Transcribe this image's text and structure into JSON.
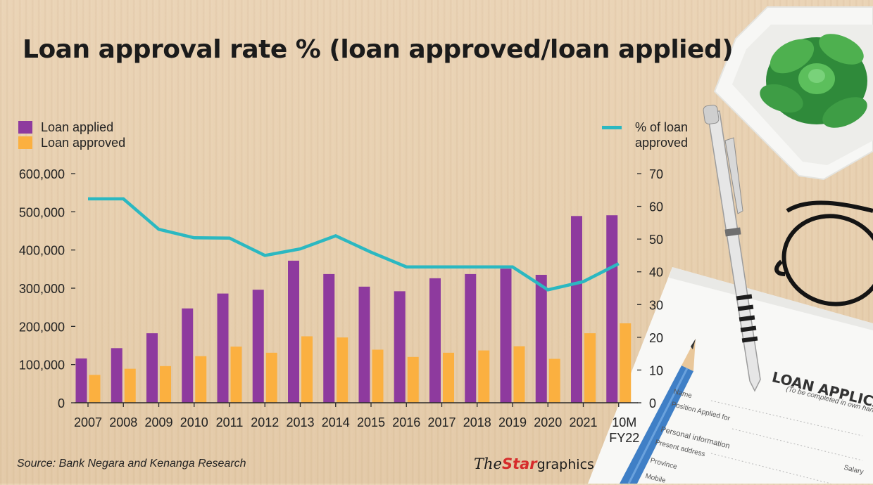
{
  "title": "Loan approval rate % (loan approved/loan applied)",
  "legend": {
    "applied": "Loan applied",
    "approved": "Loan approved",
    "rate_line1": "% of loan",
    "rate_line2": "approved"
  },
  "source": "Source: Bank Negara and Kenanga Research",
  "brand": {
    "the": "The",
    "star": "Star",
    "graphics": "graphics"
  },
  "colors": {
    "applied": "#8e3a9e",
    "approved": "#fbb040",
    "rate": "#2bb8c1",
    "axis": "#2a2a2a"
  },
  "background_photo": {
    "form_title": "LOAN APPLICAT",
    "form_subtitle": "(To be completed in own handwri",
    "form_fields": [
      "Name",
      "Position Applied for",
      "Personal information",
      "Present address",
      "Province",
      "Mobile",
      "Salary"
    ],
    "icons": [
      "plant-icon",
      "pen-icon",
      "eyeglasses-icon",
      "pencil-icon",
      "paper-form-icon"
    ]
  },
  "chart_data": {
    "type": "bar",
    "title": "Loan approval rate % (loan approved/loan applied)",
    "categories": [
      "2007",
      "2008",
      "2009",
      "2010",
      "2011",
      "2012",
      "2013",
      "2014",
      "2015",
      "2016",
      "2017",
      "2018",
      "2019",
      "2020",
      "2021",
      "10M FY22"
    ],
    "category_lines": [
      [
        "2007"
      ],
      [
        "2008"
      ],
      [
        "2009"
      ],
      [
        "2010"
      ],
      [
        "2011"
      ],
      [
        "2012"
      ],
      [
        "2013"
      ],
      [
        "2014"
      ],
      [
        "2015"
      ],
      [
        "2016"
      ],
      [
        "2017"
      ],
      [
        "2018"
      ],
      [
        "2019"
      ],
      [
        "2020"
      ],
      [
        "2021"
      ],
      [
        "10M",
        "FY22"
      ]
    ],
    "series": [
      {
        "name": "Loan applied",
        "type": "bar",
        "axis": "left",
        "values": [
          116000,
          143000,
          182000,
          247000,
          286000,
          296000,
          372000,
          337000,
          304000,
          292000,
          326000,
          337000,
          351000,
          335000,
          489000,
          491000
        ]
      },
      {
        "name": "Loan approved",
        "type": "bar",
        "axis": "left",
        "values": [
          73000,
          89000,
          96000,
          122000,
          147000,
          131000,
          174000,
          171000,
          139000,
          120000,
          131000,
          137000,
          148000,
          115000,
          182000,
          208000
        ]
      },
      {
        "name": "% of loan approved",
        "type": "line",
        "axis": "right",
        "values": [
          62.3,
          62.3,
          53.0,
          50.4,
          50.3,
          45.0,
          47.0,
          51.0,
          46.0,
          41.5,
          41.5,
          41.5,
          41.5,
          34.5,
          37.0,
          42.5
        ]
      }
    ],
    "y_left": {
      "min": 0,
      "max": 600000,
      "ticks": [
        0,
        100000,
        200000,
        300000,
        400000,
        500000,
        600000
      ],
      "tick_labels": [
        "0",
        "100,000",
        "200,000",
        "300,000",
        "400,000",
        "500,000",
        "600,000"
      ]
    },
    "y_right": {
      "min": 0,
      "max": 70,
      "ticks": [
        0,
        10,
        20,
        30,
        40,
        50,
        60,
        70
      ],
      "tick_labels": [
        "0",
        "10",
        "20",
        "30",
        "40",
        "50",
        "60",
        "70"
      ]
    },
    "grid": false,
    "legend_position": "top-left (bars), top-right (line)"
  }
}
